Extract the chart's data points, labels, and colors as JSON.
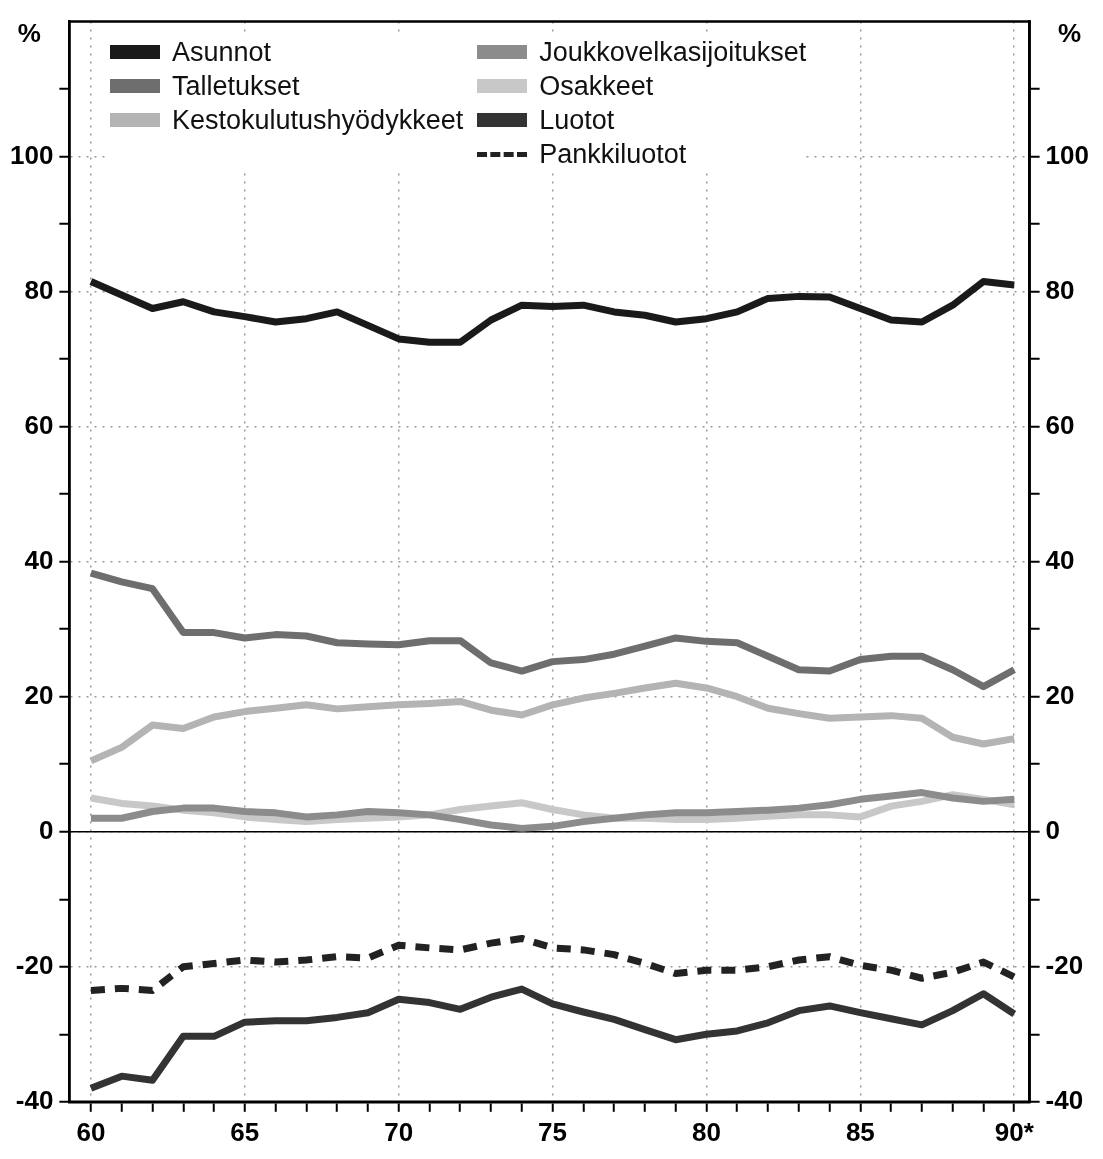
{
  "chart_data": {
    "type": "line",
    "ylabel": "%",
    "y2label": "%",
    "x": [
      60,
      61,
      62,
      63,
      64,
      65,
      66,
      67,
      68,
      69,
      70,
      71,
      72,
      73,
      74,
      75,
      76,
      77,
      78,
      79,
      80,
      81,
      82,
      83,
      84,
      85,
      86,
      87,
      88,
      89,
      90
    ],
    "xlim": [
      59.3,
      90.5
    ],
    "xticks": [
      60,
      {
        "value": 61,
        "label": null
      },
      {
        "value": 62,
        "label": null
      },
      {
        "value": 63,
        "label": null
      },
      {
        "value": 64,
        "label": null
      },
      65,
      {
        "value": 66,
        "label": null
      },
      {
        "value": 67,
        "label": null
      },
      {
        "value": 68,
        "label": null
      },
      {
        "value": 69,
        "label": null
      },
      70,
      {
        "value": 71,
        "label": null
      },
      {
        "value": 72,
        "label": null
      },
      {
        "value": 73,
        "label": null
      },
      {
        "value": 74,
        "label": null
      },
      75,
      {
        "value": 76,
        "label": null
      },
      {
        "value": 77,
        "label": null
      },
      {
        "value": 78,
        "label": null
      },
      {
        "value": 79,
        "label": null
      },
      80,
      {
        "value": 81,
        "label": null
      },
      {
        "value": 82,
        "label": null
      },
      {
        "value": 83,
        "label": null
      },
      {
        "value": 84,
        "label": null
      },
      85,
      {
        "value": 86,
        "label": null
      },
      {
        "value": 87,
        "label": null
      },
      {
        "value": 88,
        "label": null
      },
      {
        "value": 89,
        "label": null
      },
      {
        "value": 90,
        "label": "90*"
      }
    ],
    "ylim": [
      -40,
      120
    ],
    "yticks": [
      -40,
      {
        "value": -30,
        "label": null
      },
      -20,
      {
        "value": -10,
        "label": null
      },
      0,
      {
        "value": 10,
        "label": null
      },
      20,
      {
        "value": 30,
        "label": null
      },
      40,
      {
        "value": 50,
        "label": null
      },
      60,
      {
        "value": 70,
        "label": null
      },
      80,
      {
        "value": 90,
        "label": null
      },
      100,
      {
        "value": 110,
        "label": null
      }
    ],
    "y2lim": [
      -40,
      120
    ],
    "y2ticks": [
      -40,
      {
        "value": -30,
        "label": null
      },
      -20,
      {
        "value": -10,
        "label": null
      },
      0,
      {
        "value": 10,
        "label": null
      },
      20,
      {
        "value": 30,
        "label": null
      },
      40,
      {
        "value": 50,
        "label": null
      },
      60,
      {
        "value": 70,
        "label": null
      },
      80,
      {
        "value": 90,
        "label": null
      },
      100,
      {
        "value": 110,
        "label": null
      }
    ],
    "grid": true,
    "legend": "top left",
    "ref_lines": [
      {
        "axis": "y",
        "value": 0,
        "color": "#000000"
      }
    ],
    "series": [
      {
        "name": "Asunnot",
        "color": "#1a1a1a",
        "values": [
          81.5,
          79.5,
          77.5,
          78.5,
          77,
          76.3,
          75.5,
          76,
          77,
          75,
          73,
          72.5,
          72.5,
          75.8,
          78,
          77.8,
          78,
          77,
          76.5,
          75.5,
          76,
          77,
          79,
          79.3,
          79.2,
          77.5,
          75.8,
          75.5,
          78,
          81.5,
          81
        ]
      },
      {
        "name": "Talletukset",
        "color": "#6e6e6e",
        "values": [
          38.3,
          37,
          36,
          29.5,
          29.5,
          28.7,
          29.2,
          29,
          28,
          27.8,
          27.7,
          28.3,
          28.3,
          25,
          23.8,
          25.2,
          25.5,
          26.3,
          27.5,
          28.7,
          28.2,
          28,
          26,
          24,
          23.8,
          25.5,
          26,
          26,
          24,
          21.5,
          24
        ]
      },
      {
        "name": "Kestokulutushyödykkeet",
        "color": "#b4b4b4",
        "values": [
          10.5,
          12.5,
          15.8,
          15.3,
          17,
          17.8,
          18.3,
          18.8,
          18.2,
          18.5,
          18.8,
          19,
          19.3,
          18,
          17.3,
          18.8,
          19.8,
          20.5,
          21.3,
          22,
          21.3,
          20,
          18.3,
          17.5,
          16.8,
          17,
          17.2,
          16.8,
          14,
          13,
          13.8
        ]
      },
      {
        "name": "Joukkovelkasijoitukset",
        "color": "#8c8c8c",
        "values": [
          2,
          2,
          3,
          3.5,
          3.5,
          3,
          2.8,
          2.2,
          2.5,
          3,
          2.8,
          2.5,
          1.8,
          1,
          0.5,
          0.8,
          1.5,
          2,
          2.5,
          2.8,
          2.8,
          3,
          3.2,
          3.5,
          4,
          4.8,
          5.3,
          5.8,
          5,
          4.5,
          4.8
        ]
      },
      {
        "name": "Osakkeet",
        "color": "#c8c8c8",
        "values": [
          5,
          4.2,
          3.8,
          3.2,
          2.8,
          2.2,
          1.8,
          1.5,
          1.8,
          2,
          2.2,
          2.5,
          3.3,
          3.8,
          4.3,
          3.3,
          2.5,
          2,
          2,
          1.8,
          1.8,
          2,
          2.3,
          2.5,
          2.5,
          2.2,
          3.8,
          4.5,
          5.5,
          4.8,
          4
        ]
      },
      {
        "name": "Luotot",
        "color": "#333333",
        "values": [
          -38,
          -36.2,
          -36.8,
          -30.3,
          -30.3,
          -28.2,
          -28,
          -28,
          -27.5,
          -26.8,
          -24.8,
          -25.3,
          -26.3,
          -24.5,
          -23.3,
          -25.5,
          -26.7,
          -27.8,
          -29.3,
          -30.8,
          -30,
          -29.5,
          -28.3,
          -26.5,
          -25.8,
          -26.8,
          -27.7,
          -28.6,
          -26.5,
          -24,
          -27
        ]
      },
      {
        "name": "Pankkiluotot",
        "color": "#222222",
        "line_style": "dashed",
        "values": [
          -23.5,
          -23.2,
          -23.5,
          -20,
          -19.5,
          -19,
          -19.3,
          -19,
          -18.5,
          -18.7,
          -16.8,
          -17.2,
          -17.5,
          -16.5,
          -15.8,
          -17.2,
          -17.5,
          -18.2,
          -19.5,
          -21,
          -20.5,
          -20.5,
          -20,
          -19,
          -18.5,
          -19.8,
          -20.5,
          -21.7,
          -20.8,
          -19.3,
          -21.5
        ]
      }
    ]
  }
}
